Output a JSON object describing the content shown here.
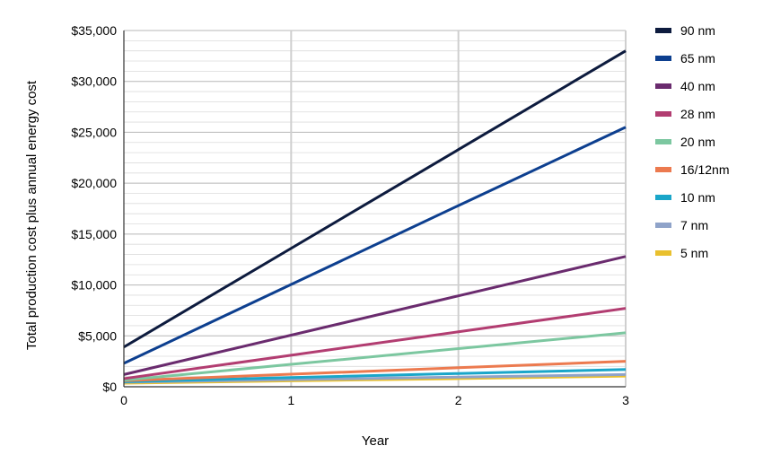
{
  "chart_data": {
    "type": "line",
    "title": "",
    "xlabel": "Year",
    "ylabel": "Total production cost plus annual energy cost",
    "x": [
      0,
      1,
      2,
      3
    ],
    "x_ticks": [
      "0",
      "1",
      "2",
      "3"
    ],
    "y_ticks": [
      "$0",
      "$5,000",
      "$10,000",
      "$15,000",
      "$20,000",
      "$25,000",
      "$30,000",
      "$35,000"
    ],
    "xlim": [
      0,
      3
    ],
    "ylim": [
      0,
      35000
    ],
    "grid": true,
    "legend_position": "right",
    "series": [
      {
        "name": "90 nm",
        "color": "#0d1b3e",
        "values": [
          3900,
          13600,
          23300,
          33000
        ]
      },
      {
        "name": "65 nm",
        "color": "#0d3f8f",
        "values": [
          2300,
          10050,
          17800,
          25500
        ]
      },
      {
        "name": "40 nm",
        "color": "#6a2b6e",
        "values": [
          1200,
          5070,
          8930,
          12800
        ]
      },
      {
        "name": "28 nm",
        "color": "#b23d71",
        "values": [
          800,
          3100,
          5400,
          7700
        ]
      },
      {
        "name": "20 nm",
        "color": "#7cc7a0",
        "values": [
          650,
          2200,
          3750,
          5300
        ]
      },
      {
        "name": "16/12nm",
        "color": "#ec7a4f",
        "values": [
          600,
          1230,
          1870,
          2500
        ]
      },
      {
        "name": "10 nm",
        "color": "#1aa6c9",
        "values": [
          500,
          900,
          1300,
          1700
        ]
      },
      {
        "name": "7 nm",
        "color": "#8fa3c9",
        "values": [
          450,
          700,
          950,
          1200
        ]
      },
      {
        "name": "5 nm",
        "color": "#e9c02e",
        "values": [
          350,
          580,
          800,
          1050
        ]
      }
    ]
  }
}
